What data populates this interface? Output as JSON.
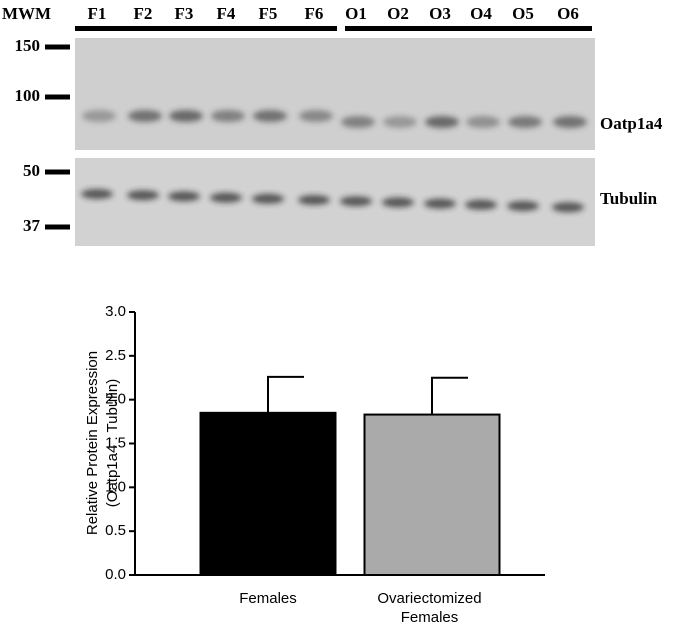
{
  "blot": {
    "marker_header": "MWM",
    "lanes": [
      "F1",
      "F2",
      "F3",
      "F4",
      "F5",
      "F6",
      "O1",
      "O2",
      "O3",
      "O4",
      "O5",
      "O6"
    ],
    "upper_markers": [
      150,
      100
    ],
    "lower_markers": [
      50,
      37
    ],
    "upper_band": "Oatp1a4",
    "lower_band": "Tubulin"
  },
  "chart_data": {
    "type": "bar",
    "ylabel": [
      "Relative Protein Expression",
      "(Oatp1a4 : Tubulin)"
    ],
    "categories": [
      "Females",
      "Ovariectomized Females"
    ],
    "values": [
      1.85,
      1.83
    ],
    "errors": [
      0.41,
      0.42
    ],
    "colors": [
      "#000000",
      "#aaaaaa"
    ],
    "ylim": [
      0,
      3
    ],
    "yticks": [
      {
        "value": 0,
        "label": "0.0"
      },
      {
        "value": 0.5,
        "label": "0.5"
      },
      {
        "value": 1,
        "label": "1.0"
      },
      {
        "value": 1.5,
        "label": "1.5"
      },
      {
        "value": 2,
        "label": "2.0"
      },
      {
        "value": 2.5,
        "label": "2.5"
      },
      {
        "value": 3,
        "label": "3.0"
      }
    ]
  }
}
